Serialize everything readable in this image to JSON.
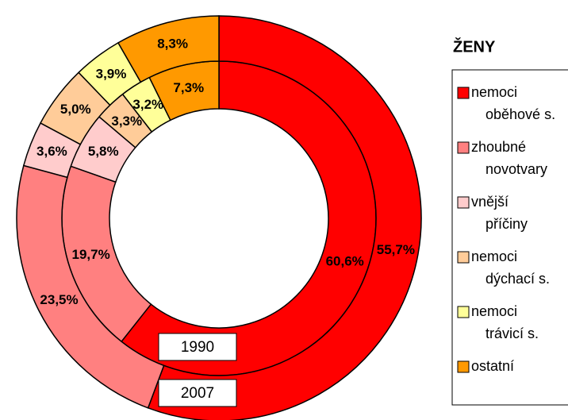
{
  "chart_data": {
    "type": "donut",
    "title": "ŽENY",
    "categories": [
      "nemoci oběhové s.",
      "zhoubné novotvary",
      "vnější příčiny",
      "nemoci dýchací s.",
      "nemoci trávicí s.",
      "ostatní"
    ],
    "colors": [
      "#ff0000",
      "#ff8080",
      "#ffcccc",
      "#ffcc99",
      "#ffff99",
      "#ff9900"
    ],
    "series": [
      {
        "name": "1990",
        "values": [
          60.6,
          19.7,
          5.8,
          3.3,
          3.2,
          7.3
        ],
        "value_labels": [
          "60,6%",
          "19,7%",
          "5,8%",
          "3,3%",
          "3,2%",
          "7,3%"
        ]
      },
      {
        "name": "2007",
        "values": [
          55.7,
          23.5,
          3.6,
          5.0,
          3.9,
          8.3
        ],
        "value_labels": [
          "55,7%",
          "23,5%",
          "3,6%",
          "5,0%",
          "3,9%",
          "8,3%"
        ]
      }
    ]
  }
}
